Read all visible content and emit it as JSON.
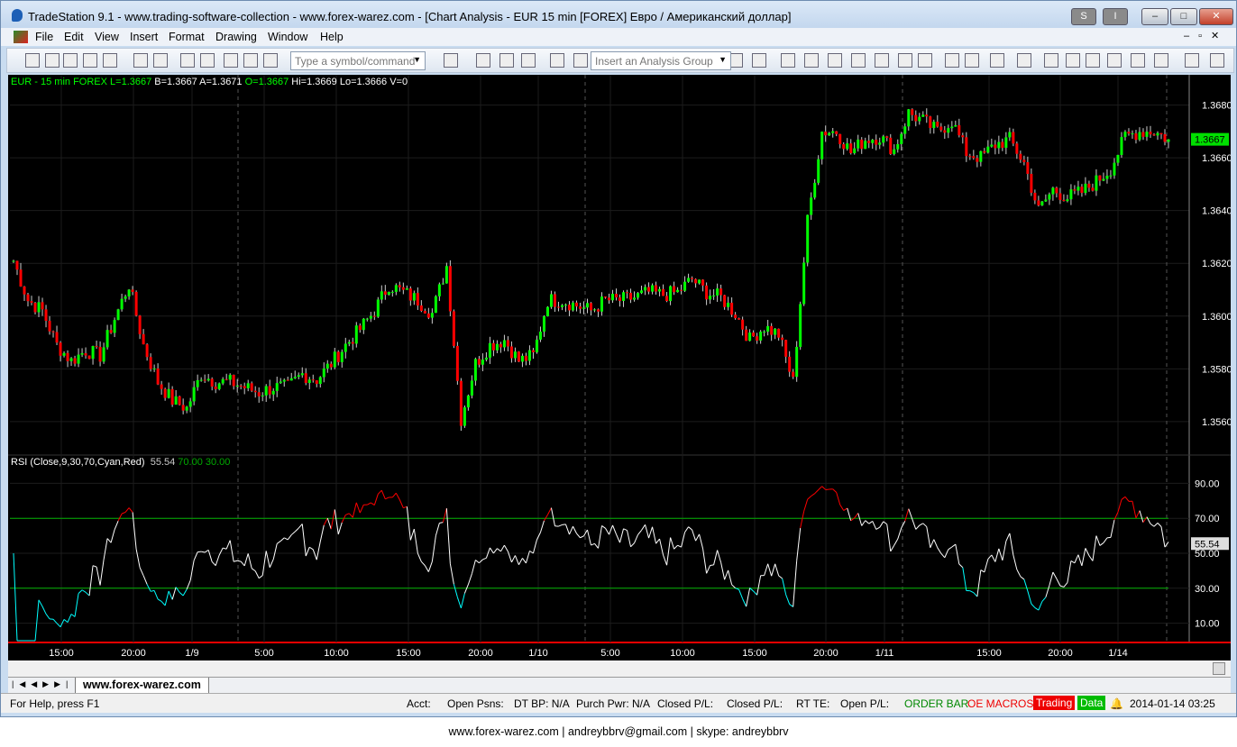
{
  "window": {
    "title": "TradeStation 9.1 - www.trading-software-collection - www.forex-warez.com - [Chart Analysis - EUR 15 min [FOREX] Евро / Американский доллар]",
    "buttons": [
      "S",
      "I"
    ]
  },
  "menu": [
    "File",
    "Edit",
    "View",
    "Insert",
    "Format",
    "Drawing",
    "Window",
    "Help"
  ],
  "toolbar": {
    "symbol_placeholder": "Type a symbol/command",
    "analysis_placeholder": "Insert an Analysis Group"
  },
  "chart": {
    "header": {
      "symbol": "EUR - 15 min  FOREX",
      "L": "L=1.3667",
      "B": "B=1.3667",
      "A": "A=1.3671",
      "O": "O=1.3667",
      "Hi": "Hi=1.3669",
      "Lo": "Lo=1.3666",
      "V": "V=0"
    },
    "last_price": "1.3667",
    "price_ticks": [
      "1.3680",
      "1.3660",
      "1.3640",
      "1.3620",
      "1.3600",
      "1.3580",
      "1.3560"
    ],
    "rsi": {
      "label": "RSI (Close,9,30,70,Cyan,Red)",
      "value": "55.54",
      "ob": "70.00",
      "os": "30.00",
      "ticks": [
        "90.00",
        "70.00",
        "50.00",
        "30.00",
        "10.00"
      ],
      "last": "55.54"
    },
    "time_labels": [
      "15:00",
      "20:00",
      "1/9",
      "5:00",
      "10:00",
      "15:00",
      "20:00",
      "1/10",
      "5:00",
      "10:00",
      "15:00",
      "20:00",
      "1/11",
      "15:00",
      "20:00",
      "1/14"
    ],
    "colors": {
      "up": "#00ff00",
      "down": "#ff0000",
      "rsi": "#ffffff",
      "rsi_ob": "#ff0000",
      "rsi_os": "#00ffff",
      "levels": "#00b000"
    }
  },
  "chart_data": {
    "type": "candlestick",
    "interval": "15 min",
    "symbol": "EUR",
    "hourly_closes": [
      1.3621,
      1.3606,
      1.3602,
      1.3589,
      1.3583,
      1.3587,
      1.3585,
      1.3599,
      1.3612,
      1.3589,
      1.3575,
      1.3568,
      1.3565,
      1.3578,
      1.3575,
      1.3575,
      1.3573,
      1.3571,
      1.3573,
      1.3573,
      1.3578,
      1.3576,
      1.3582,
      1.3589,
      1.3595,
      1.3602,
      1.3612,
      1.3609,
      1.3606,
      1.3601,
      1.3619,
      1.3561,
      1.3582,
      1.3589,
      1.3591,
      1.3583,
      1.3585,
      1.3606,
      1.3606,
      1.3604,
      1.3602,
      1.3606,
      1.3606,
      1.3607,
      1.3609,
      1.3608,
      1.3609,
      1.3614,
      1.3609,
      1.3607,
      1.3601,
      1.3591,
      1.3596,
      1.3593,
      1.3575,
      1.3636,
      1.367,
      1.367,
      1.3662,
      1.3667,
      1.3668,
      1.3663,
      1.3677,
      1.3674,
      1.367,
      1.3674,
      1.3662,
      1.366,
      1.3665,
      1.3667,
      1.3658,
      1.364,
      1.3648,
      1.3645,
      1.3647,
      1.3651,
      1.3656,
      1.3668,
      1.367,
      1.367,
      1.3667
    ],
    "ylim": [
      1.3548,
      1.3686
    ],
    "rsi_levels": [
      30,
      70
    ]
  },
  "tab": "www.forex-warez.com",
  "status": {
    "help": "For Help, press F1",
    "acct": "Acct:",
    "psns": "Open Psns:",
    "dtbp": "DT BP: N/A",
    "pp": "Purch Pwr: N/A",
    "cpl1": "Closed P/L:",
    "cpl2": "Closed P/L:",
    "rtte": "RT TE:",
    "opl": "Open P/L:",
    "orderbar": "ORDER BAR",
    "oemacros": "OE MACROS",
    "trading": "Trading",
    "data": "Data",
    "datetime": "2014-01-14 03:25"
  },
  "footer": "www.forex-warez.com | andreybbrv@gmail.com | skype: andreybbrv"
}
